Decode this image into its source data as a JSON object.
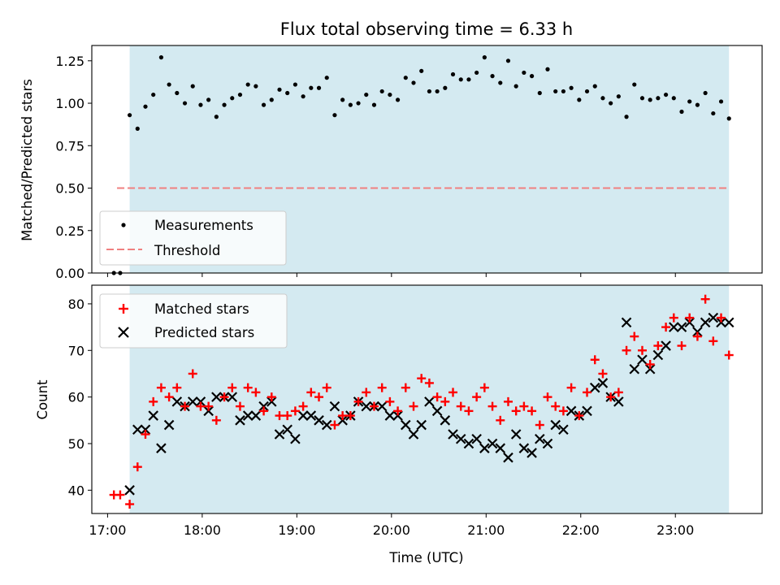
{
  "chart_data": [
    {
      "type": "scatter",
      "title": "Flux total observing time = 6.33 h",
      "ylabel": "Matched/Predicted stars",
      "ylim": [
        0,
        1.34
      ],
      "xlim": [
        "16:50",
        "23:55"
      ],
      "yticks": [
        "0.00",
        "0.25",
        "0.50",
        "0.75",
        "1.00",
        "1.25"
      ],
      "observing_window": {
        "start": "17:14",
        "end": "23:34",
        "color": "#d4eaf1"
      },
      "legend": {
        "location": "lower left"
      },
      "threshold": {
        "name": "Threshold",
        "y": 0.5,
        "x_start": "17:06",
        "x_end": "23:34",
        "color": "#f08080",
        "style": "dashed"
      },
      "series": [
        {
          "name": "Measurements",
          "color": "#000000",
          "marker": "dot",
          "x": [
            "17:04",
            "17:08",
            "17:14",
            "17:19",
            "17:24",
            "17:29",
            "17:34",
            "17:39",
            "17:44",
            "17:49",
            "17:54",
            "17:59",
            "18:04",
            "18:09",
            "18:14",
            "18:19",
            "18:24",
            "18:29",
            "18:34",
            "18:39",
            "18:44",
            "18:49",
            "18:54",
            "18:59",
            "19:04",
            "19:09",
            "19:14",
            "19:19",
            "19:24",
            "19:29",
            "19:34",
            "19:39",
            "19:44",
            "19:49",
            "19:54",
            "19:59",
            "20:04",
            "20:09",
            "20:14",
            "20:19",
            "20:24",
            "20:29",
            "20:34",
            "20:39",
            "20:44",
            "20:49",
            "20:54",
            "20:59",
            "21:04",
            "21:09",
            "21:14",
            "21:19",
            "21:24",
            "21:29",
            "21:34",
            "21:39",
            "21:44",
            "21:49",
            "21:54",
            "21:59",
            "22:04",
            "22:09",
            "22:14",
            "22:19",
            "22:24",
            "22:29",
            "22:34",
            "22:39",
            "22:44",
            "22:49",
            "22:54",
            "22:59",
            "23:04",
            "23:09",
            "23:14",
            "23:19",
            "23:24",
            "23:29",
            "23:34"
          ],
          "y": [
            0.0,
            0.0,
            0.93,
            0.85,
            0.98,
            1.05,
            1.27,
            1.11,
            1.06,
            1.0,
            1.1,
            0.99,
            1.02,
            0.92,
            0.99,
            1.03,
            1.05,
            1.11,
            1.1,
            0.99,
            1.02,
            1.08,
            1.06,
            1.11,
            1.04,
            1.09,
            1.09,
            1.15,
            0.93,
            1.02,
            0.99,
            1.0,
            1.05,
            0.99,
            1.07,
            1.05,
            1.02,
            1.15,
            1.12,
            1.19,
            1.07,
            1.07,
            1.09,
            1.17,
            1.14,
            1.14,
            1.18,
            1.27,
            1.16,
            1.12,
            1.25,
            1.1,
            1.18,
            1.16,
            1.06,
            1.2,
            1.07,
            1.07,
            1.09,
            1.02,
            1.07,
            1.1,
            1.03,
            1.0,
            1.04,
            0.92,
            1.11,
            1.03,
            1.02,
            1.03,
            1.05,
            1.03,
            0.95,
            1.01,
            0.99,
            1.06,
            0.94,
            1.01,
            0.91
          ]
        }
      ]
    },
    {
      "type": "scatter",
      "xlabel": "Time (UTC)",
      "ylabel": "Count",
      "ylim": [
        35,
        84
      ],
      "xlim": [
        "16:50",
        "23:55"
      ],
      "xticks": [
        "17:00",
        "18:00",
        "19:00",
        "20:00",
        "21:00",
        "22:00",
        "23:00"
      ],
      "yticks": [
        "40",
        "50",
        "60",
        "70",
        "80"
      ],
      "observing_window": {
        "start": "17:14",
        "end": "23:34",
        "color": "#d4eaf1"
      },
      "legend": {
        "location": "upper left"
      },
      "series": [
        {
          "name": "Matched stars",
          "color": "#ff0000",
          "marker": "plus",
          "x": [
            "17:04",
            "17:08",
            "17:14",
            "17:19",
            "17:24",
            "17:29",
            "17:34",
            "17:39",
            "17:44",
            "17:49",
            "17:54",
            "17:59",
            "18:04",
            "18:09",
            "18:14",
            "18:19",
            "18:24",
            "18:29",
            "18:34",
            "18:39",
            "18:44",
            "18:49",
            "18:54",
            "18:59",
            "19:04",
            "19:09",
            "19:14",
            "19:19",
            "19:24",
            "19:29",
            "19:34",
            "19:39",
            "19:44",
            "19:49",
            "19:54",
            "19:59",
            "20:04",
            "20:09",
            "20:14",
            "20:19",
            "20:24",
            "20:29",
            "20:34",
            "20:39",
            "20:44",
            "20:49",
            "20:54",
            "20:59",
            "21:04",
            "21:09",
            "21:14",
            "21:19",
            "21:24",
            "21:29",
            "21:34",
            "21:39",
            "21:44",
            "21:49",
            "21:54",
            "21:59",
            "22:04",
            "22:09",
            "22:14",
            "22:19",
            "22:24",
            "22:29",
            "22:34",
            "22:39",
            "22:44",
            "22:49",
            "22:54",
            "22:59",
            "23:04",
            "23:09",
            "23:14",
            "23:19",
            "23:24",
            "23:29",
            "23:34"
          ],
          "y": [
            39,
            39,
            37,
            45,
            52,
            59,
            62,
            60,
            62,
            58,
            65,
            58,
            58,
            55,
            60,
            62,
            58,
            62,
            61,
            57,
            60,
            56,
            56,
            57,
            58,
            61,
            60,
            62,
            54,
            56,
            56,
            59,
            61,
            58,
            62,
            59,
            57,
            62,
            58,
            64,
            63,
            60,
            59,
            61,
            58,
            57,
            60,
            62,
            58,
            55,
            59,
            57,
            58,
            57,
            54,
            60,
            58,
            57,
            62,
            56,
            61,
            68,
            65,
            60,
            61,
            70,
            73,
            70,
            67,
            71,
            75,
            77,
            71,
            77,
            73,
            81,
            72,
            77,
            69
          ]
        },
        {
          "name": "Predicted stars",
          "color": "#000000",
          "marker": "cross",
          "x": [
            "17:14",
            "17:19",
            "17:24",
            "17:29",
            "17:34",
            "17:39",
            "17:44",
            "17:49",
            "17:54",
            "17:59",
            "18:04",
            "18:09",
            "18:14",
            "18:19",
            "18:24",
            "18:29",
            "18:34",
            "18:39",
            "18:44",
            "18:49",
            "18:54",
            "18:59",
            "19:04",
            "19:09",
            "19:14",
            "19:19",
            "19:24",
            "19:29",
            "19:34",
            "19:39",
            "19:44",
            "19:49",
            "19:54",
            "19:59",
            "20:04",
            "20:09",
            "20:14",
            "20:19",
            "20:24",
            "20:29",
            "20:34",
            "20:39",
            "20:44",
            "20:49",
            "20:54",
            "20:59",
            "21:04",
            "21:09",
            "21:14",
            "21:19",
            "21:24",
            "21:29",
            "21:34",
            "21:39",
            "21:44",
            "21:49",
            "21:54",
            "21:59",
            "22:04",
            "22:09",
            "22:14",
            "22:19",
            "22:24",
            "22:29",
            "22:34",
            "22:39",
            "22:44",
            "22:49",
            "22:54",
            "22:59",
            "23:04",
            "23:09",
            "23:14",
            "23:19",
            "23:24",
            "23:29",
            "23:34"
          ],
          "y": [
            40,
            53,
            53,
            56,
            49,
            54,
            59,
            58,
            59,
            59,
            57,
            60,
            60,
            60,
            55,
            56,
            56,
            58,
            59,
            52,
            53,
            51,
            56,
            56,
            55,
            54,
            58,
            55,
            56,
            59,
            58,
            58,
            58,
            56,
            56,
            54,
            52,
            54,
            59,
            57,
            55,
            52,
            51,
            50,
            51,
            49,
            50,
            49,
            47,
            52,
            49,
            48,
            51,
            50,
            54,
            53,
            57,
            56,
            57,
            62,
            63,
            60,
            59,
            76,
            66,
            68,
            66,
            69,
            71,
            75,
            75,
            76,
            74,
            76,
            77,
            76,
            76
          ]
        }
      ]
    }
  ]
}
